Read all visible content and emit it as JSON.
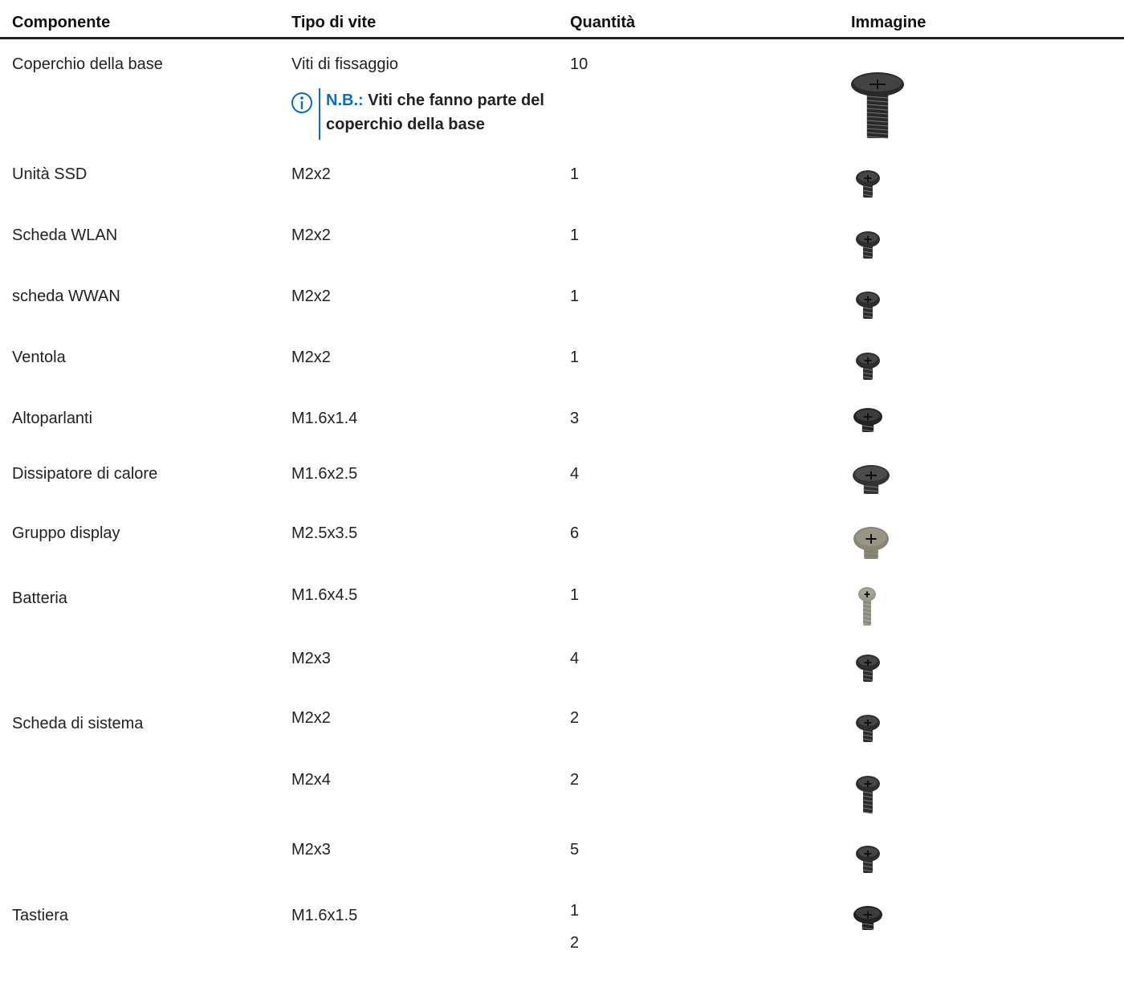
{
  "table": {
    "headers": [
      "Componente",
      "Tipo di vite",
      "Quantità",
      "Immagine"
    ],
    "rows": [
      {
        "component": "Coperchio della base",
        "screw_type": "Viti di fissaggio",
        "note": {
          "label": "N.B.:",
          "text": "Viti che fanno parte del coperchio della base"
        },
        "quantity": [
          "10"
        ]
      },
      {
        "component": "Unità SSD",
        "screw_type": "M2x2",
        "quantity": [
          "1"
        ]
      },
      {
        "component": "Scheda WLAN",
        "screw_type": "M2x2",
        "quantity": [
          "1"
        ]
      },
      {
        "component": "scheda WWAN",
        "screw_type": "M2x2",
        "quantity": [
          "1"
        ]
      },
      {
        "component": "Ventola",
        "screw_type": "M2x2",
        "quantity": [
          "1"
        ]
      },
      {
        "component": "Altoparlanti",
        "screw_type": "M1.6x1.4",
        "quantity": [
          "3"
        ]
      },
      {
        "component": "Dissipatore di calore",
        "screw_type": "M1.6x2.5",
        "quantity": [
          "4"
        ]
      },
      {
        "component": "Gruppo display",
        "screw_type": "M2.5x3.5",
        "quantity": [
          "6"
        ]
      },
      {
        "component": "Batteria",
        "screw_type": "M1.6x4.5",
        "quantity": [
          "1"
        ]
      },
      {
        "screw_type": "M2x3",
        "quantity": [
          "4"
        ]
      },
      {
        "component": "Scheda di sistema",
        "screw_type": "M2x2",
        "quantity": [
          "2"
        ]
      },
      {
        "screw_type": "M2x4",
        "quantity": [
          "2"
        ]
      },
      {
        "screw_type": "M2x3",
        "quantity": [
          "5"
        ]
      },
      {
        "component": "Tastiera",
        "screw_type": "M1.6x1.5",
        "quantity": [
          "1",
          "2"
        ]
      }
    ]
  }
}
